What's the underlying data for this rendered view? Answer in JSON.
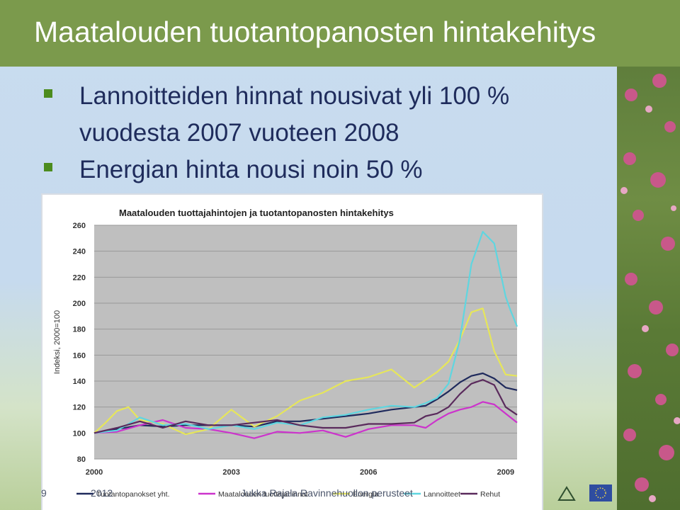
{
  "slide": {
    "title": "Maatalouden tuotantopanosten hintakehitys",
    "bullets": [
      {
        "line1": "Lannoitteiden hinnat nousivat yli 100 %",
        "line2": "vuodesta 2007 vuoteen 2008"
      },
      {
        "line1": "Energian hinta nousi noin 50 %",
        "line2": ""
      }
    ],
    "footer_left": "9",
    "footer_year": "2012",
    "footer_author": "Jukka Rajala Ravinnehuollon perusteet"
  },
  "colors": {
    "title_bar": "#7b9a4c",
    "plot_bg": "#bfbfbf",
    "tuotantopanokset": "#1f2a5c",
    "maatalous": "#cc33cc",
    "energia": "#e6e65a",
    "lannoitteet": "#5fd6e0",
    "rehut": "#5a2a5c"
  },
  "chart_data": {
    "type": "line",
    "title": "Maatalouden tuottajahintojen ja tuotantopanosten hintakehitys",
    "ylabel": "Indeksi, 2000=100",
    "xlabel": "",
    "ylim": [
      80,
      260
    ],
    "yticks": [
      80,
      100,
      120,
      140,
      160,
      180,
      200,
      220,
      240,
      260
    ],
    "xlim": [
      2000,
      2009.25
    ],
    "xticks": [
      2000,
      2003,
      2006,
      2009
    ],
    "grid": true,
    "legend_position": "bottom",
    "series": [
      {
        "name": "Tuotantopanokset yht.",
        "color_key": "tuotantopanokset",
        "x": [
          2000,
          2000.5,
          2001,
          2001.5,
          2002,
          2002.5,
          2003,
          2003.5,
          2004,
          2004.5,
          2005,
          2005.5,
          2006,
          2006.5,
          2007,
          2007.25,
          2007.5,
          2007.75,
          2008,
          2008.25,
          2008.5,
          2008.75,
          2009,
          2009.25
        ],
        "y": [
          100,
          103,
          106,
          105,
          106,
          106,
          106,
          105,
          109,
          109,
          111,
          113,
          115,
          118,
          120,
          121,
          126,
          132,
          139,
          144,
          146,
          142,
          135,
          133
        ]
      },
      {
        "name": "Maatalouden tuottajahinnat",
        "color_key": "maatalous",
        "x": [
          2000,
          2000.5,
          2001,
          2001.5,
          2002,
          2002.5,
          2003,
          2003.5,
          2004,
          2004.5,
          2005,
          2005.5,
          2006,
          2006.5,
          2007,
          2007.25,
          2007.5,
          2007.75,
          2008,
          2008.25,
          2008.5,
          2008.75,
          2009,
          2009.25
        ],
        "y": [
          100,
          101,
          106,
          110,
          104,
          103,
          100,
          96,
          101,
          100,
          102,
          97,
          103,
          106,
          106,
          104,
          110,
          115,
          118,
          120,
          124,
          122,
          115,
          108
        ]
      },
      {
        "name": "Energia",
        "color_key": "energia",
        "x": [
          2000,
          2000.25,
          2000.5,
          2000.75,
          2001,
          2001.5,
          2002,
          2002.5,
          2003,
          2003.5,
          2004,
          2004.5,
          2005,
          2005.5,
          2006,
          2006.5,
          2007,
          2007.25,
          2007.5,
          2007.75,
          2008,
          2008.25,
          2008.5,
          2008.75,
          2009,
          2009.25
        ],
        "y": [
          100,
          108,
          117,
          120,
          110,
          107,
          99,
          103,
          118,
          105,
          113,
          125,
          131,
          140,
          143,
          149,
          135,
          141,
          147,
          155,
          172,
          193,
          196,
          163,
          145,
          144
        ]
      },
      {
        "name": "Lannoitteet",
        "color_key": "lannoitteet",
        "x": [
          2000,
          2000.5,
          2001,
          2001.5,
          2002,
          2002.5,
          2003,
          2003.5,
          2004,
          2004.5,
          2005,
          2005.5,
          2006,
          2006.5,
          2007,
          2007.25,
          2007.5,
          2007.75,
          2008,
          2008.25,
          2008.5,
          2008.75,
          2009,
          2009.1,
          2009.25
        ],
        "y": [
          100,
          102,
          112,
          106,
          107,
          103,
          106,
          103,
          108,
          106,
          112,
          114,
          118,
          121,
          120,
          123,
          127,
          138,
          172,
          230,
          255,
          246,
          205,
          195,
          182
        ]
      },
      {
        "name": "Rehut",
        "color_key": "rehut",
        "x": [
          2000,
          2000.5,
          2001,
          2001.5,
          2002,
          2002.5,
          2003,
          2003.5,
          2004,
          2004.5,
          2005,
          2005.5,
          2006,
          2006.5,
          2007,
          2007.25,
          2007.5,
          2007.75,
          2008,
          2008.25,
          2008.5,
          2008.75,
          2009,
          2009.25
        ],
        "y": [
          100,
          104,
          109,
          104,
          109,
          106,
          106,
          108,
          110,
          106,
          104,
          104,
          107,
          107,
          108,
          113,
          115,
          120,
          130,
          138,
          141,
          137,
          120,
          114
        ]
      }
    ]
  }
}
